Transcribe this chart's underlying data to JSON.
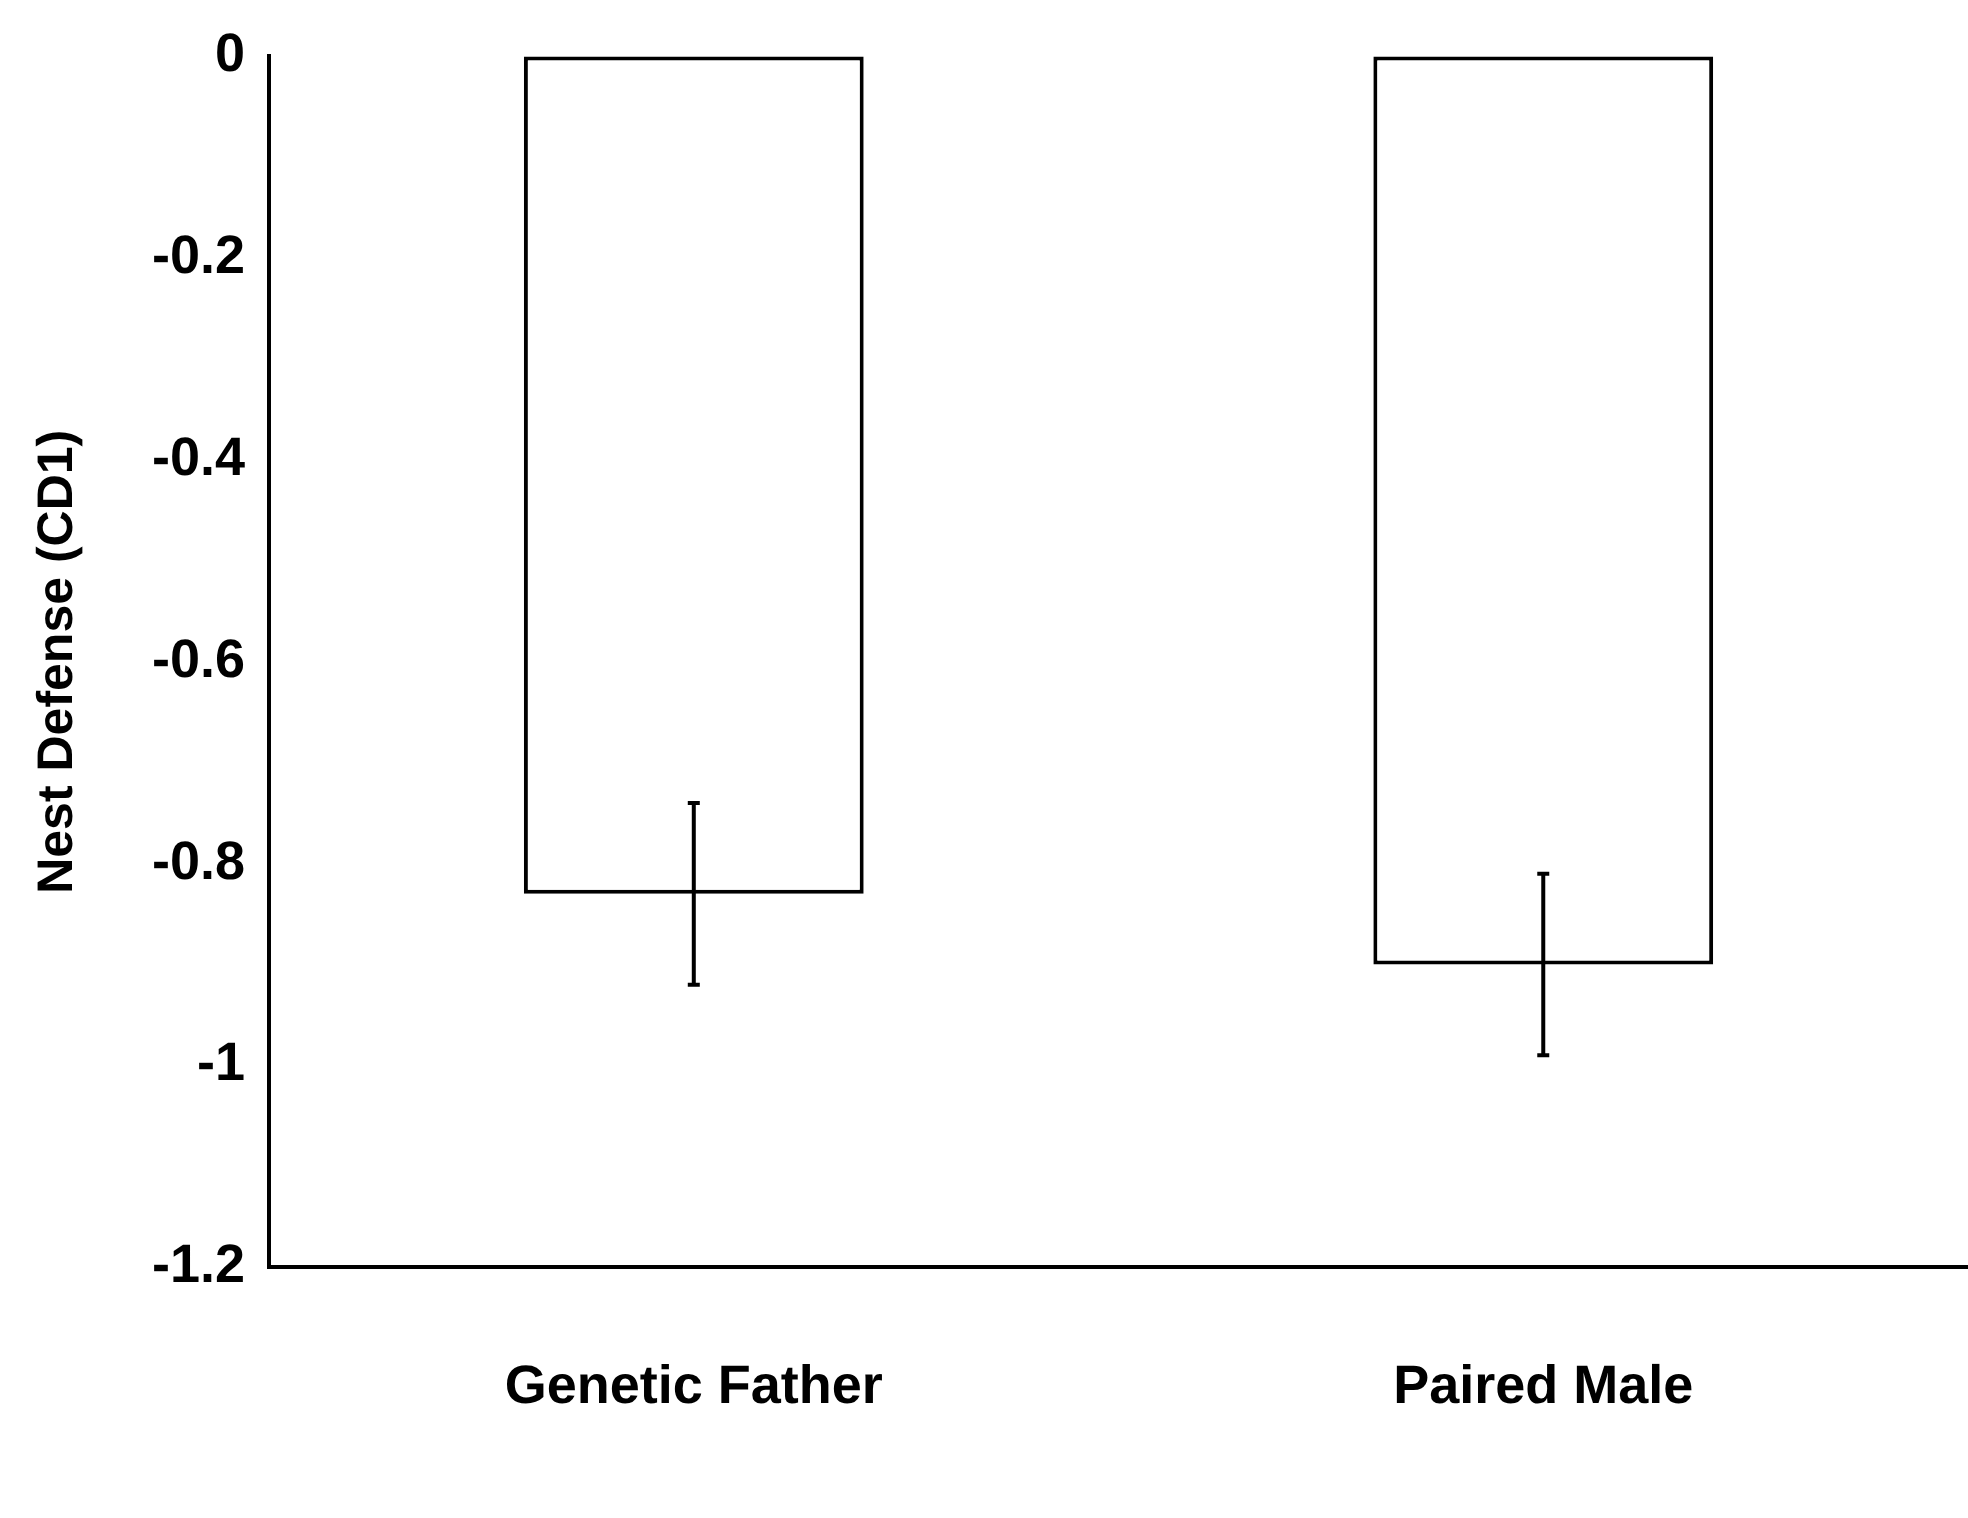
{
  "chart_data": {
    "type": "bar",
    "ylabel": "Nest Defense (CD1)",
    "categories": [
      "Genetic Father",
      "Paired Male"
    ],
    "values": [
      -0.83,
      -0.9
    ],
    "errors": [
      0.09,
      0.09
    ],
    "color": "#ffffff",
    "ylim": [
      -1.2,
      0
    ],
    "yticks": [
      0,
      -0.2,
      -0.4,
      -0.6,
      -0.8,
      -1,
      -1.2
    ],
    "grid": false,
    "legend": false
  }
}
